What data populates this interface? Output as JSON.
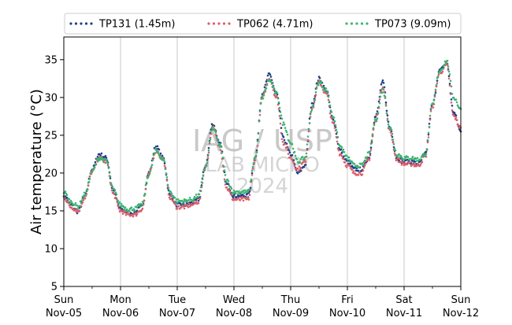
{
  "chart_data": {
    "type": "line",
    "xlabel": "",
    "ylabel": "Air temperature (°C)",
    "ylim": [
      5,
      38
    ],
    "yticks": [
      5,
      10,
      15,
      20,
      25,
      30,
      35
    ],
    "xlim": [
      "2023-11-05 00:00",
      "2023-11-12 00:00"
    ],
    "xticks": [
      {
        "day": "Sun",
        "date": "Nov-05"
      },
      {
        "day": "Mon",
        "date": "Nov-06"
      },
      {
        "day": "Tue",
        "date": "Nov-07"
      },
      {
        "day": "Wed",
        "date": "Nov-08"
      },
      {
        "day": "Thu",
        "date": "Nov-09"
      },
      {
        "day": "Fri",
        "date": "Nov-10"
      },
      {
        "day": "Sat",
        "date": "Nov-11"
      },
      {
        "day": "Sun",
        "date": "Nov-12"
      }
    ],
    "grid": "vertical",
    "legend_position": "top",
    "watermark": [
      "IAG / USP",
      "LAB MICRO",
      "2024"
    ],
    "series": [
      {
        "name": "TP131 (1.45m)",
        "color": "#1f3f8a",
        "points": [
          [
            "2023-11-05 00:00",
            17.2
          ],
          [
            "2023-11-05 03:00",
            15.8
          ],
          [
            "2023-11-05 06:00",
            14.9
          ],
          [
            "2023-11-05 09:00",
            17.0
          ],
          [
            "2023-11-05 12:00",
            20.5
          ],
          [
            "2023-11-05 15:00",
            22.5
          ],
          [
            "2023-11-05 18:00",
            22.0
          ],
          [
            "2023-11-05 21:00",
            17.5
          ],
          [
            "2023-11-06 00:00",
            15.2
          ],
          [
            "2023-11-06 03:00",
            14.8
          ],
          [
            "2023-11-06 06:00",
            14.8
          ],
          [
            "2023-11-06 09:00",
            15.5
          ],
          [
            "2023-11-06 12:00",
            20.0
          ],
          [
            "2023-11-06 15:00",
            23.5
          ],
          [
            "2023-11-06 18:00",
            22.0
          ],
          [
            "2023-11-06 21:00",
            17.0
          ],
          [
            "2023-11-07 00:00",
            15.8
          ],
          [
            "2023-11-07 03:00",
            15.8
          ],
          [
            "2023-11-07 06:00",
            16.0
          ],
          [
            "2023-11-07 09:00",
            16.5
          ],
          [
            "2023-11-07 12:00",
            21.0
          ],
          [
            "2023-11-07 15:00",
            26.5
          ],
          [
            "2023-11-07 18:00",
            24.0
          ],
          [
            "2023-11-07 21:00",
            18.5
          ],
          [
            "2023-11-08 00:00",
            17.0
          ],
          [
            "2023-11-08 03:00",
            17.0
          ],
          [
            "2023-11-08 06:00",
            17.0
          ],
          [
            "2023-11-08 09:00",
            22.0
          ],
          [
            "2023-11-08 12:00",
            30.5
          ],
          [
            "2023-11-08 15:00",
            33.0
          ],
          [
            "2023-11-08 18:00",
            30.5
          ],
          [
            "2023-11-08 21:00",
            24.5
          ],
          [
            "2023-11-09 00:00",
            22.5
          ],
          [
            "2023-11-09 03:00",
            20.0
          ],
          [
            "2023-11-09 06:00",
            21.0
          ],
          [
            "2023-11-09 09:00",
            29.0
          ],
          [
            "2023-11-09 12:00",
            32.5
          ],
          [
            "2023-11-09 15:00",
            31.0
          ],
          [
            "2023-11-09 18:00",
            27.0
          ],
          [
            "2023-11-09 21:00",
            23.0
          ],
          [
            "2023-11-10 00:00",
            21.5
          ],
          [
            "2023-11-10 03:00",
            20.5
          ],
          [
            "2023-11-10 06:00",
            20.5
          ],
          [
            "2023-11-10 09:00",
            22.0
          ],
          [
            "2023-11-10 12:00",
            27.5
          ],
          [
            "2023-11-10 15:00",
            32.0
          ],
          [
            "2023-11-10 18:00",
            26.0
          ],
          [
            "2023-11-10 21:00",
            22.0
          ],
          [
            "2023-11-11 00:00",
            21.5
          ],
          [
            "2023-11-11 03:00",
            21.5
          ],
          [
            "2023-11-11 06:00",
            21.2
          ],
          [
            "2023-11-11 09:00",
            22.5
          ],
          [
            "2023-11-11 12:00",
            29.0
          ],
          [
            "2023-11-11 15:00",
            33.5
          ],
          [
            "2023-11-11 18:00",
            34.5
          ],
          [
            "2023-11-11 21:00",
            28.0
          ],
          [
            "2023-11-12 00:00",
            25.5
          ]
        ]
      },
      {
        "name": "TP062 (4.71m)",
        "color": "#d95f6a",
        "points": [
          [
            "2023-11-05 00:00",
            16.8
          ],
          [
            "2023-11-05 03:00",
            15.5
          ],
          [
            "2023-11-05 06:00",
            15.0
          ],
          [
            "2023-11-05 09:00",
            16.8
          ],
          [
            "2023-11-05 12:00",
            20.2
          ],
          [
            "2023-11-05 15:00",
            22.0
          ],
          [
            "2023-11-05 18:00",
            21.5
          ],
          [
            "2023-11-05 21:00",
            17.2
          ],
          [
            "2023-11-06 00:00",
            15.0
          ],
          [
            "2023-11-06 03:00",
            14.5
          ],
          [
            "2023-11-06 06:00",
            14.5
          ],
          [
            "2023-11-06 09:00",
            15.2
          ],
          [
            "2023-11-06 12:00",
            19.8
          ],
          [
            "2023-11-06 15:00",
            23.0
          ],
          [
            "2023-11-06 18:00",
            21.8
          ],
          [
            "2023-11-06 21:00",
            16.8
          ],
          [
            "2023-11-07 00:00",
            15.5
          ],
          [
            "2023-11-07 03:00",
            15.5
          ],
          [
            "2023-11-07 06:00",
            15.8
          ],
          [
            "2023-11-07 09:00",
            16.2
          ],
          [
            "2023-11-07 12:00",
            20.8
          ],
          [
            "2023-11-07 15:00",
            26.0
          ],
          [
            "2023-11-07 18:00",
            23.5
          ],
          [
            "2023-11-07 21:00",
            18.0
          ],
          [
            "2023-11-08 00:00",
            16.5
          ],
          [
            "2023-11-08 03:00",
            16.5
          ],
          [
            "2023-11-08 06:00",
            16.5
          ],
          [
            "2023-11-08 09:00",
            21.8
          ],
          [
            "2023-11-08 12:00",
            30.0
          ],
          [
            "2023-11-08 15:00",
            32.5
          ],
          [
            "2023-11-08 18:00",
            30.0
          ],
          [
            "2023-11-08 21:00",
            24.0
          ],
          [
            "2023-11-09 00:00",
            22.0
          ],
          [
            "2023-11-09 03:00",
            20.5
          ],
          [
            "2023-11-09 06:00",
            21.5
          ],
          [
            "2023-11-09 09:00",
            28.5
          ],
          [
            "2023-11-09 12:00",
            32.0
          ],
          [
            "2023-11-09 15:00",
            30.5
          ],
          [
            "2023-11-09 18:00",
            26.5
          ],
          [
            "2023-11-09 21:00",
            22.5
          ],
          [
            "2023-11-10 00:00",
            21.0
          ],
          [
            "2023-11-10 03:00",
            20.0
          ],
          [
            "2023-11-10 06:00",
            20.0
          ],
          [
            "2023-11-10 09:00",
            21.8
          ],
          [
            "2023-11-10 12:00",
            27.0
          ],
          [
            "2023-11-10 15:00",
            31.5
          ],
          [
            "2023-11-10 18:00",
            25.5
          ],
          [
            "2023-11-10 21:00",
            21.8
          ],
          [
            "2023-11-11 00:00",
            21.2
          ],
          [
            "2023-11-11 03:00",
            21.2
          ],
          [
            "2023-11-11 06:00",
            21.0
          ],
          [
            "2023-11-11 09:00",
            22.2
          ],
          [
            "2023-11-11 12:00",
            28.8
          ],
          [
            "2023-11-11 15:00",
            33.2
          ],
          [
            "2023-11-11 18:00",
            34.3
          ],
          [
            "2023-11-11 21:00",
            27.5
          ],
          [
            "2023-11-12 00:00",
            26.0
          ]
        ]
      },
      {
        "name": "TP073 (9.09m)",
        "color": "#3cb371",
        "points": [
          [
            "2023-11-05 00:00",
            17.5
          ],
          [
            "2023-11-05 03:00",
            16.2
          ],
          [
            "2023-11-05 06:00",
            15.6
          ],
          [
            "2023-11-05 09:00",
            17.2
          ],
          [
            "2023-11-05 12:00",
            20.2
          ],
          [
            "2023-11-05 15:00",
            22.0
          ],
          [
            "2023-11-05 18:00",
            21.6
          ],
          [
            "2023-11-05 21:00",
            17.8
          ],
          [
            "2023-11-06 00:00",
            15.8
          ],
          [
            "2023-11-06 03:00",
            15.2
          ],
          [
            "2023-11-06 06:00",
            15.3
          ],
          [
            "2023-11-06 09:00",
            15.8
          ],
          [
            "2023-11-06 12:00",
            19.8
          ],
          [
            "2023-11-06 15:00",
            23.0
          ],
          [
            "2023-11-06 18:00",
            21.8
          ],
          [
            "2023-11-06 21:00",
            17.5
          ],
          [
            "2023-11-07 00:00",
            16.3
          ],
          [
            "2023-11-07 03:00",
            16.3
          ],
          [
            "2023-11-07 06:00",
            16.5
          ],
          [
            "2023-11-07 09:00",
            17.0
          ],
          [
            "2023-11-07 12:00",
            20.8
          ],
          [
            "2023-11-07 15:00",
            26.0
          ],
          [
            "2023-11-07 18:00",
            23.8
          ],
          [
            "2023-11-07 21:00",
            19.0
          ],
          [
            "2023-11-08 00:00",
            17.5
          ],
          [
            "2023-11-08 03:00",
            17.5
          ],
          [
            "2023-11-08 06:00",
            17.5
          ],
          [
            "2023-11-08 09:00",
            22.0
          ],
          [
            "2023-11-08 12:00",
            30.0
          ],
          [
            "2023-11-08 15:00",
            32.3
          ],
          [
            "2023-11-08 18:00",
            30.5
          ],
          [
            "2023-11-08 21:00",
            26.5
          ],
          [
            "2023-11-09 00:00",
            24.0
          ],
          [
            "2023-11-09 03:00",
            21.5
          ],
          [
            "2023-11-09 06:00",
            22.0
          ],
          [
            "2023-11-09 09:00",
            28.5
          ],
          [
            "2023-11-09 12:00",
            32.0
          ],
          [
            "2023-11-09 15:00",
            31.0
          ],
          [
            "2023-11-09 18:00",
            27.5
          ],
          [
            "2023-11-09 21:00",
            23.5
          ],
          [
            "2023-11-10 00:00",
            22.0
          ],
          [
            "2023-11-10 03:00",
            21.0
          ],
          [
            "2023-11-10 06:00",
            21.0
          ],
          [
            "2023-11-10 09:00",
            22.5
          ],
          [
            "2023-11-10 12:00",
            27.0
          ],
          [
            "2023-11-10 15:00",
            31.0
          ],
          [
            "2023-11-10 18:00",
            26.0
          ],
          [
            "2023-11-10 21:00",
            22.5
          ],
          [
            "2023-11-11 00:00",
            22.0
          ],
          [
            "2023-11-11 03:00",
            22.0
          ],
          [
            "2023-11-11 06:00",
            21.8
          ],
          [
            "2023-11-11 09:00",
            22.5
          ],
          [
            "2023-11-11 12:00",
            29.0
          ],
          [
            "2023-11-11 15:00",
            33.5
          ],
          [
            "2023-11-11 18:00",
            34.8
          ],
          [
            "2023-11-11 21:00",
            30.0
          ],
          [
            "2023-11-12 00:00",
            28.5
          ]
        ]
      }
    ]
  }
}
